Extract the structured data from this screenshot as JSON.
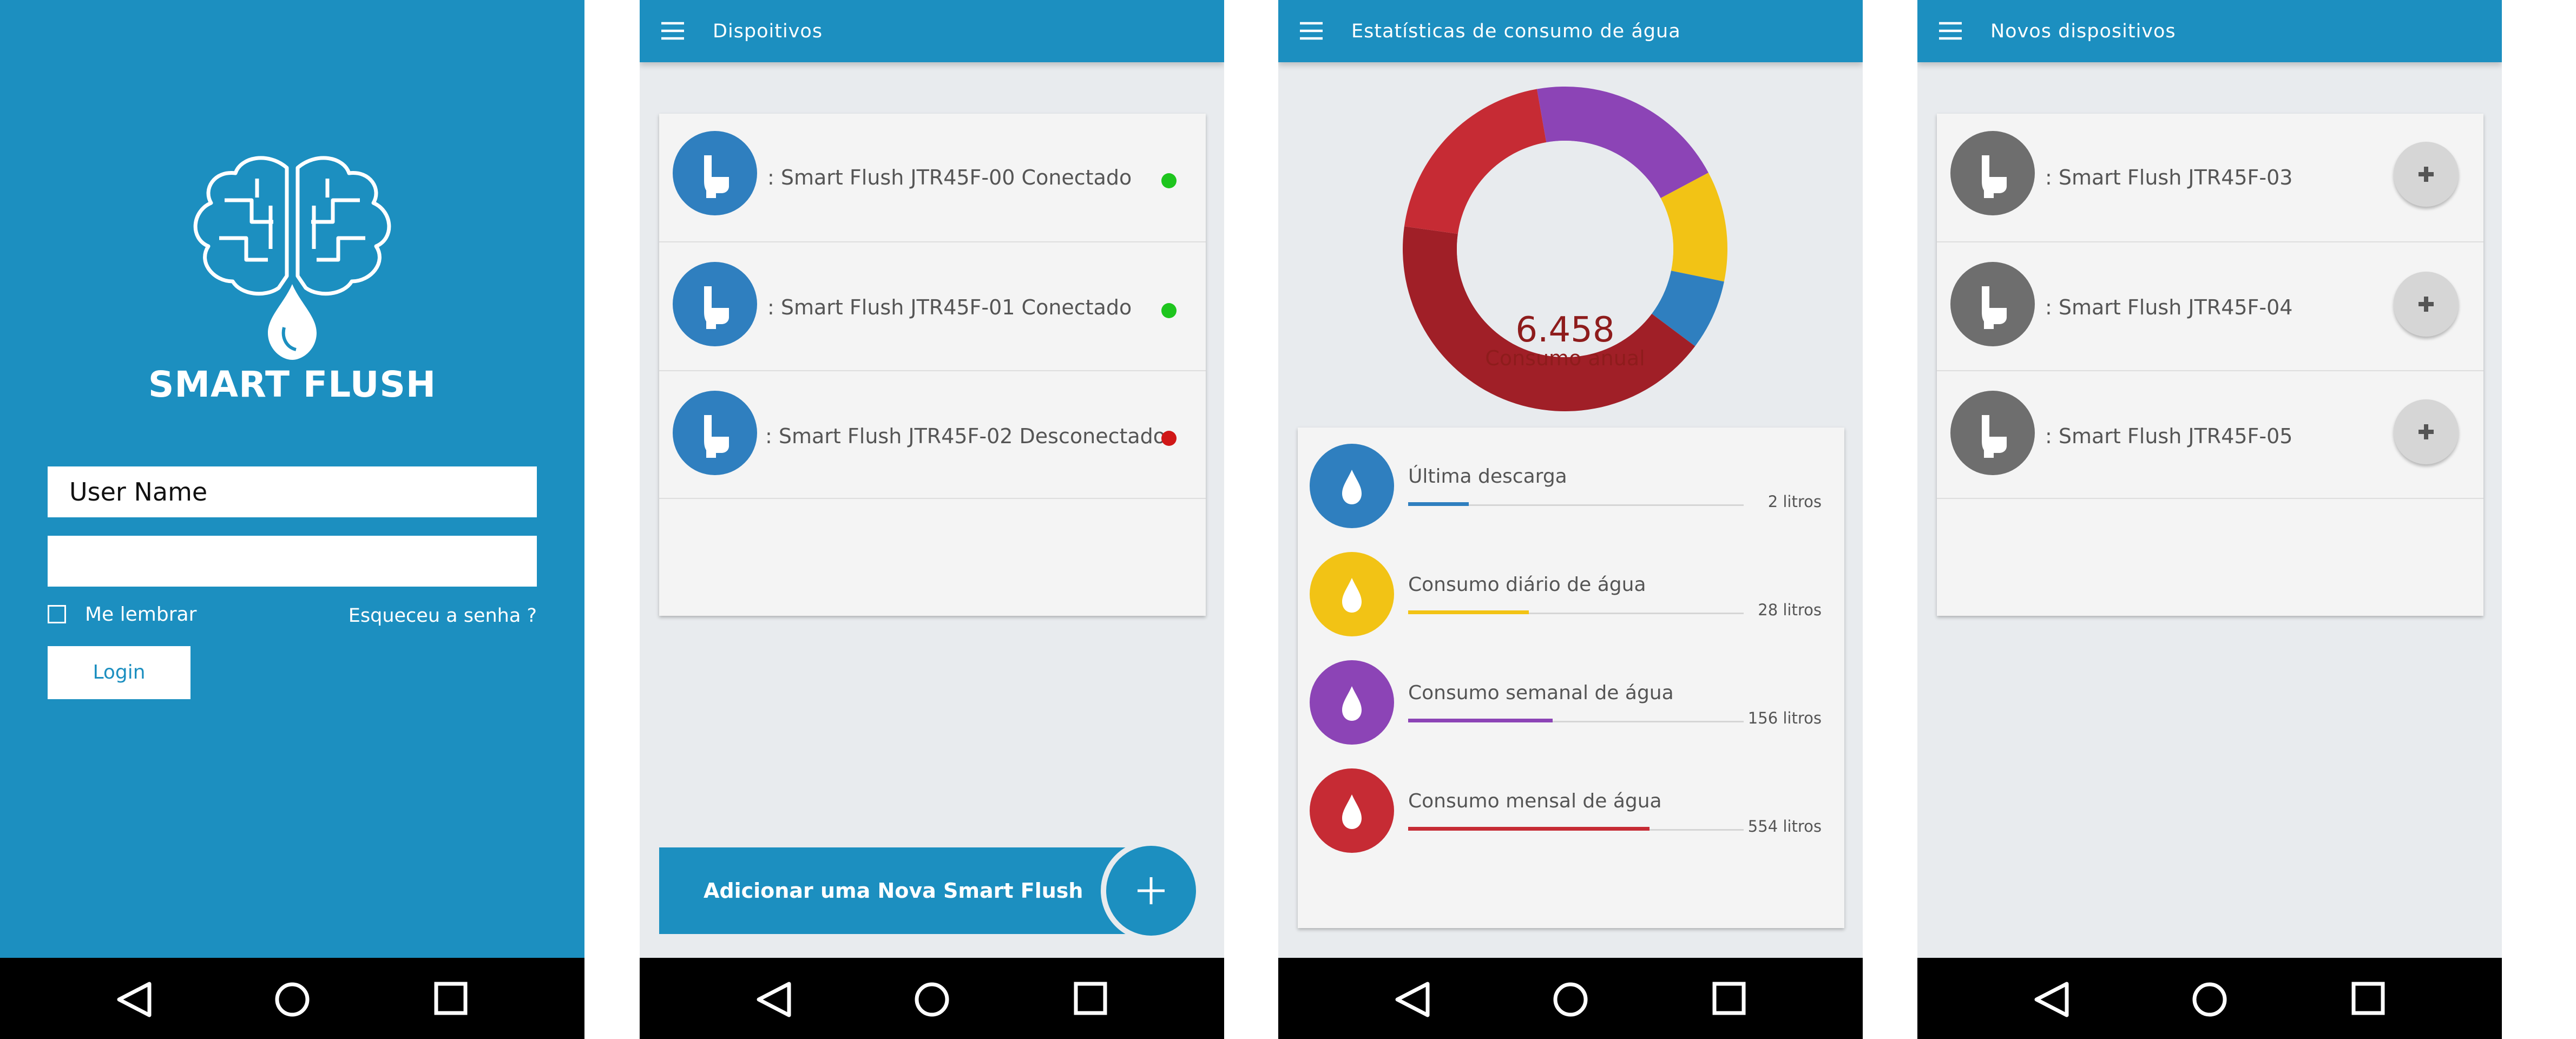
{
  "login": {
    "brand": "SMART FLUSH",
    "username_value": "User Name",
    "password_value": "",
    "remember_label": "Me lembrar",
    "forgot_label": "Esqueceu a senha ?",
    "login_label": "Login"
  },
  "devices": {
    "title": "Dispoitivos",
    "items": [
      {
        "label": ": Smart Flush JTR45F-00 Conectado",
        "status": "connected",
        "status_color": "#1ec51e"
      },
      {
        "label": ": Smart Flush JTR45F-01 Conectado",
        "status": "connected",
        "status_color": "#1ec51e"
      },
      {
        "label": ": Smart Flush JTR45F-02 Desconectado",
        "status": "disconnected",
        "status_color": "#d01717"
      }
    ],
    "add_label": "Adicionar uma Nova Smart Flush"
  },
  "stats": {
    "title": "Estatísticas de consumo de água",
    "donut_value": "6.458",
    "donut_label": "Consumo anual",
    "donut_segments": [
      {
        "color": "#8c44b6",
        "fraction": 0.2
      },
      {
        "color": "#f2c315",
        "fraction": 0.11
      },
      {
        "color": "#2f7fbf",
        "fraction": 0.07
      },
      {
        "color": "#a01f27",
        "fraction": 0.42
      },
      {
        "color": "#c62b34",
        "fraction": 0.2
      }
    ],
    "items": [
      {
        "title": "Última descarga",
        "value": "2 litros",
        "color": "#2f7fbf",
        "level": 0.18
      },
      {
        "title": "Consumo diário de água",
        "value": "28 litros",
        "color": "#f2c315",
        "level": 0.36
      },
      {
        "title": "Consumo semanal de água",
        "value": "156 litros",
        "color": "#8c44b6",
        "level": 0.43
      },
      {
        "title": "Consumo mensal de água",
        "value": "554 litros",
        "color": "#c62b34",
        "level": 0.72
      }
    ]
  },
  "new_devices": {
    "title": "Novos dispositivos",
    "items": [
      {
        "label": ": Smart Flush JTR45F-03"
      },
      {
        "label": ": Smart Flush JTR45F-04"
      },
      {
        "label": ": Smart Flush JTR45F-05"
      }
    ]
  },
  "colors": {
    "primary": "#1c8fc0",
    "device_icon_active": "#2f7fbf",
    "device_icon_new": "#6e6e6e"
  }
}
